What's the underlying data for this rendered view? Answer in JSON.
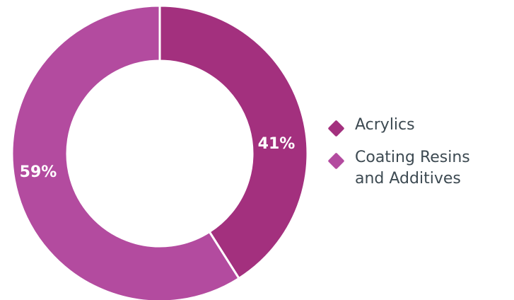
{
  "chart_data": {
    "type": "pie",
    "donut": true,
    "categories": [
      "Acrylics",
      "Coating Resins\nand Additives"
    ],
    "values": [
      41,
      59
    ],
    "value_labels": [
      "41%",
      "59%"
    ],
    "colors": [
      "#a3307e",
      "#b34b9f"
    ],
    "legend_position": "right"
  }
}
